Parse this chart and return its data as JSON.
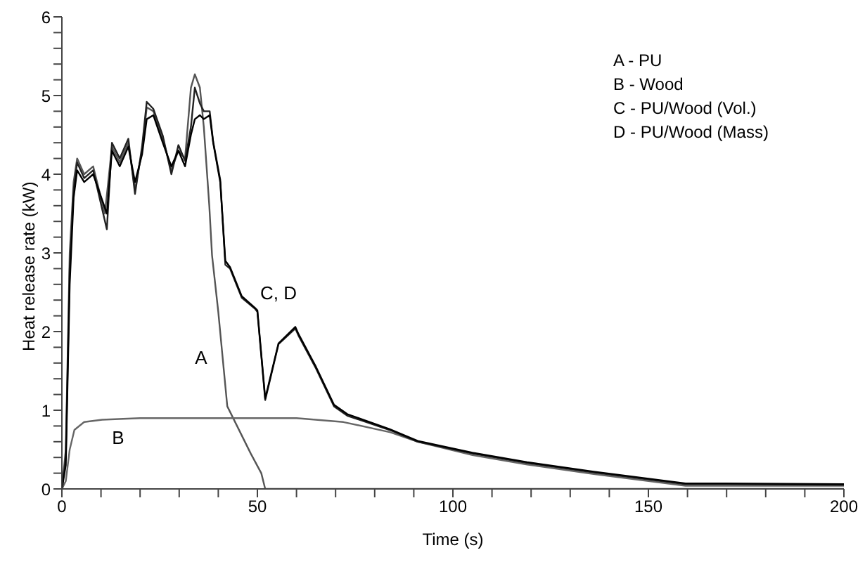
{
  "chart_data": {
    "type": "line",
    "xlabel": "Time (s)",
    "ylabel": "Heat release rate (kW)",
    "xlim": [
      0,
      200
    ],
    "ylim": [
      0,
      6
    ],
    "xticks": [
      0,
      {
        "value": 10,
        "label": null
      },
      {
        "value": 20,
        "label": null
      },
      {
        "value": 30,
        "label": null
      },
      {
        "value": 40,
        "label": null
      },
      50,
      {
        "value": 60,
        "label": null
      },
      {
        "value": 70,
        "label": null
      },
      {
        "value": 80,
        "label": null
      },
      {
        "value": 90,
        "label": null
      },
      100,
      {
        "value": 110,
        "label": null
      },
      {
        "value": 120,
        "label": null
      },
      {
        "value": 130,
        "label": null
      },
      {
        "value": 140,
        "label": null
      },
      150,
      {
        "value": 160,
        "label": null
      },
      {
        "value": 170,
        "label": null
      },
      {
        "value": 180,
        "label": null
      },
      {
        "value": 190,
        "label": null
      },
      200
    ],
    "yticks": [
      0,
      {
        "value": 0.2,
        "label": null
      },
      {
        "value": 0.4,
        "label": null
      },
      {
        "value": 0.6,
        "label": null
      },
      {
        "value": 0.8,
        "label": null
      },
      1,
      {
        "value": 1.2,
        "label": null
      },
      {
        "value": 1.4,
        "label": null
      },
      {
        "value": 1.6,
        "label": null
      },
      {
        "value": 1.8,
        "label": null
      },
      2,
      {
        "value": 2.2,
        "label": null
      },
      {
        "value": 2.4,
        "label": null
      },
      {
        "value": 2.6,
        "label": null
      },
      {
        "value": 2.8,
        "label": null
      },
      3,
      {
        "value": 3.2,
        "label": null
      },
      {
        "value": 3.4,
        "label": null
      },
      {
        "value": 3.6,
        "label": null
      },
      {
        "value": 3.8,
        "label": null
      },
      4,
      {
        "value": 4.2,
        "label": null
      },
      {
        "value": 4.4,
        "label": null
      },
      {
        "value": 4.6,
        "label": null
      },
      {
        "value": 4.8,
        "label": null
      },
      5,
      {
        "value": 5.2,
        "label": null
      },
      {
        "value": 5.4,
        "label": null
      },
      {
        "value": 5.6,
        "label": null
      },
      {
        "value": 5.8,
        "label": null
      },
      6
    ],
    "grid": false,
    "marker": "none",
    "line_style": "solid",
    "annotations": [
      "A - PU",
      "B - Wood",
      "C - PU/Wood (Vol.)",
      "D - PU/Wood (Mass)",
      "A",
      "B",
      "C, D"
    ],
    "series": [
      {
        "color": "#555555",
        "x": [
          0,
          1,
          2,
          3,
          3.9,
          5.7,
          8,
          11,
          12.8,
          14.8,
          17,
          18.7,
          20.5,
          21.7,
          23.4,
          25.8,
          28,
          29.8,
          31.5,
          33,
          34,
          35.3,
          36.3,
          37.7,
          38.4,
          40,
          42.3,
          44.8,
          48.3,
          51,
          52,
          60,
          100,
          200
        ],
        "values": [
          0,
          0.5,
          3,
          3.9,
          4.2,
          4,
          4.1,
          3.5,
          4.35,
          4.15,
          4.4,
          3.8,
          4.3,
          4.85,
          4.8,
          4.45,
          4.05,
          4.3,
          4.2,
          5.1,
          5.27,
          5.1,
          4.6,
          3.6,
          2.97,
          2.25,
          1.05,
          0.8,
          0.45,
          0.2,
          0,
          0,
          0,
          0
        ]
      },
      {
        "color": "#666666",
        "x": [
          0,
          1,
          2,
          3.2,
          5.7,
          10.3,
          20,
          40,
          60,
          72,
          84,
          91,
          105,
          119,
          136,
          159.5,
          170,
          200
        ],
        "values": [
          0,
          0.1,
          0.5,
          0.75,
          0.85,
          0.88,
          0.9,
          0.9,
          0.9,
          0.85,
          0.72,
          0.6,
          0.43,
          0.31,
          0.19,
          0.04,
          0.04,
          0.04
        ]
      },
      {
        "color": "#222222",
        "x": [
          0,
          1,
          2,
          3,
          3.9,
          5.7,
          8,
          11.5,
          12.8,
          14.8,
          17,
          18.7,
          20.5,
          21.7,
          23.4,
          25.8,
          28,
          29.8,
          31.5,
          33,
          34,
          35.3,
          36.3,
          37.8,
          38.7,
          40.5,
          41.8,
          43,
          46,
          49.4,
          50,
          52,
          55.4,
          59.7,
          60.5,
          65,
          69.6,
          73,
          83.8,
          91,
          105,
          119,
          136,
          159.5,
          170,
          200
        ],
        "values": [
          0,
          0.4,
          2.8,
          3.8,
          4.15,
          3.95,
          4.05,
          3.3,
          4.4,
          4.2,
          4.45,
          3.75,
          4.35,
          4.92,
          4.83,
          4.49,
          4,
          4.37,
          4.17,
          4.6,
          5.1,
          4.9,
          4.8,
          4.8,
          4.41,
          3.93,
          2.85,
          2.8,
          2.43,
          2.29,
          2.25,
          1.13,
          1.84,
          2.04,
          1.95,
          1.53,
          1.05,
          0.93,
          0.75,
          0.6,
          0.45,
          0.33,
          0.21,
          0.06,
          0.06,
          0.05
        ]
      },
      {
        "color": "#000000",
        "x": [
          0,
          1,
          2,
          3,
          3.9,
          5.7,
          8,
          11.5,
          12.8,
          14.8,
          17,
          18.7,
          20.5,
          21.7,
          23.4,
          25.8,
          28,
          29.8,
          31.5,
          33,
          34,
          35.3,
          36.3,
          37.8,
          38.7,
          40.5,
          41.8,
          43,
          46,
          49.4,
          50,
          52,
          55.4,
          59.7,
          60.5,
          65,
          69.6,
          73,
          83.8,
          91,
          105,
          119,
          136,
          159.5,
          170,
          200
        ],
        "values": [
          0,
          0.3,
          2.6,
          3.7,
          4.05,
          3.9,
          4,
          3.5,
          4.3,
          4.1,
          4.35,
          3.9,
          4.25,
          4.7,
          4.75,
          4.4,
          4.1,
          4.3,
          4.1,
          4.5,
          4.7,
          4.75,
          4.7,
          4.75,
          4.4,
          3.9,
          2.9,
          2.82,
          2.45,
          2.3,
          2.27,
          1.15,
          1.85,
          2.06,
          1.97,
          1.55,
          1.07,
          0.95,
          0.76,
          0.61,
          0.46,
          0.34,
          0.22,
          0.07,
          0.07,
          0.06
        ]
      }
    ]
  }
}
